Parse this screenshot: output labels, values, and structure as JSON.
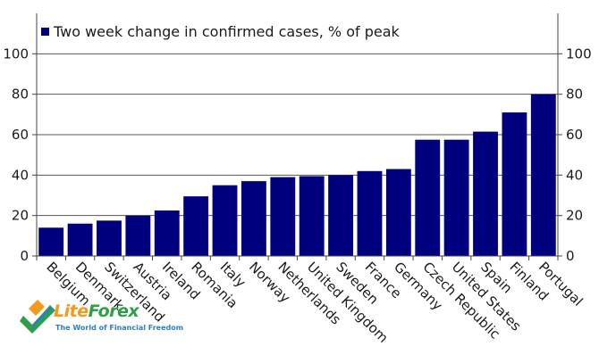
{
  "chart_data": {
    "type": "bar",
    "title": "",
    "legend": {
      "entry": "Two week change in confirmed cases, % of peak",
      "placement": "top-left"
    },
    "categories": [
      "Belgium",
      "Denmark",
      "Switzerland",
      "Austria",
      "Ireland",
      "Romania",
      "Italy",
      "Norway",
      "Netherlands",
      "United Kingdom",
      "Sweden",
      "France",
      "Germany",
      "Czech Republic",
      "United States",
      "Spain",
      "Finland",
      "Portugal"
    ],
    "series": [
      {
        "name": "Two week change in confirmed cases, % of peak",
        "values": [
          14,
          16,
          17.5,
          20,
          22.5,
          29.5,
          35,
          37,
          39,
          39.5,
          40,
          42,
          43,
          57.5,
          57.5,
          61.5,
          71,
          80
        ]
      }
    ],
    "ylim": [
      0,
      120
    ],
    "yticks": [
      0,
      20,
      40,
      60,
      80,
      100
    ],
    "xlabel": "",
    "ylabel": "",
    "grid": true,
    "y_axis_both_sides": true,
    "colors": {
      "bar": "#00007f",
      "grid": "#555555",
      "axis": "#444444"
    }
  },
  "logo": {
    "name_part1": "Lite",
    "name_part2": "Forex",
    "tagline": "The World of Financial Freedom",
    "icon": "liteforex-logo-icon"
  }
}
